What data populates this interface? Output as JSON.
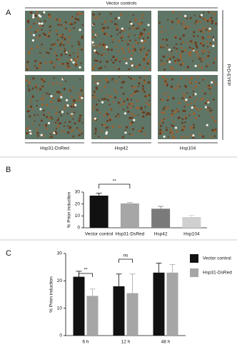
{
  "panel_labels": [
    "A",
    "B",
    "C"
  ],
  "panel_a": {
    "title": "Vector controls",
    "side_label": "PrD-EYFP",
    "columns": [
      "Hsp31-DsRed",
      "Hsp42",
      "Hsp104"
    ]
  },
  "chart_data": [
    {
      "type": "bar",
      "y_label": "% Prion induction",
      "categories": [
        "Vector control",
        "Hsp31-DsRed",
        "Hsp42",
        "Hsp104"
      ],
      "values": [
        27,
        20.5,
        16,
        9
      ],
      "errors": [
        2,
        0.7,
        2,
        1.5
      ],
      "colors": [
        "#111111",
        "#a6a6a6",
        "#7a7a7a",
        "#d0d0d0"
      ],
      "ylim": [
        0,
        30
      ],
      "yticks": [
        0,
        10,
        20,
        30
      ],
      "annotations": [
        "**"
      ]
    },
    {
      "type": "grouped_bar",
      "y_label": "% Prion induction",
      "categories": [
        "6 h",
        "12 h",
        "48 h"
      ],
      "series": [
        {
          "name": "Vector control",
          "color": "#111111",
          "values": [
            21.5,
            18,
            23
          ],
          "errors": [
            2,
            4.5,
            3.5
          ]
        },
        {
          "name": "Hsp31-DsRed",
          "color": "#a6a6a6",
          "values": [
            14.5,
            15.5,
            23
          ],
          "errors": [
            2.5,
            7,
            3
          ]
        }
      ],
      "ylim": [
        0,
        30
      ],
      "yticks": [
        0,
        10,
        20,
        30
      ],
      "legend": "right",
      "annotations": [
        "**",
        "ns"
      ]
    }
  ]
}
